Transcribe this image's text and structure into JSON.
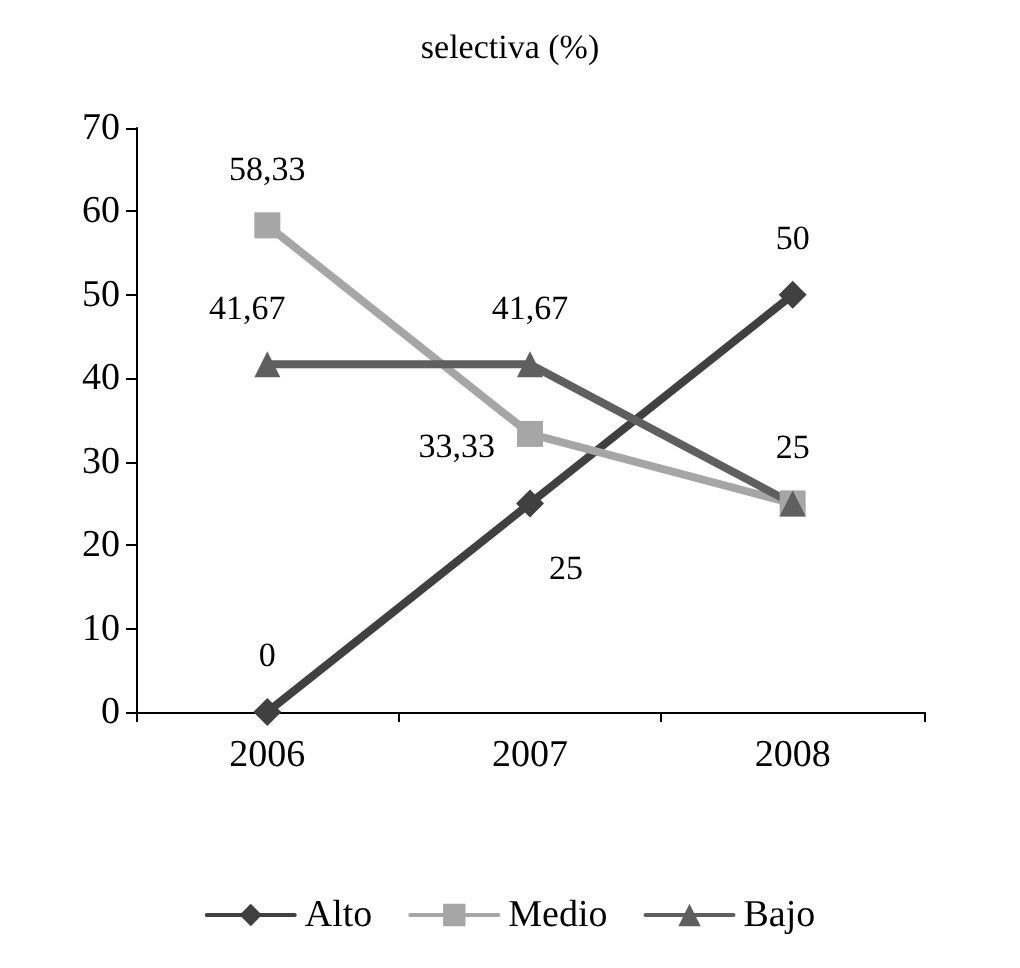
{
  "chart_data": {
    "type": "line",
    "title": "selectiva (%)",
    "categories": [
      "2006",
      "2007",
      "2008"
    ],
    "series": [
      {
        "name": "Alto",
        "color": "#404040",
        "marker": "diamond",
        "values": [
          0,
          25,
          50
        ],
        "value_labels": [
          "0",
          "25",
          "50"
        ]
      },
      {
        "name": "Medio",
        "color": "#a6a6a6",
        "marker": "square",
        "values": [
          58.33,
          33.33,
          25
        ],
        "value_labels": [
          "58,33",
          "33,33",
          null
        ]
      },
      {
        "name": "Bajo",
        "color": "#5f5f5f",
        "marker": "triangle",
        "values": [
          41.67,
          41.67,
          25
        ],
        "value_labels": [
          "41,67",
          "41,67",
          "25"
        ]
      }
    ],
    "ylim": [
      0,
      70
    ],
    "yticks": [
      0,
      10,
      20,
      30,
      40,
      50,
      60,
      70
    ],
    "grid": false,
    "legend": "bottom",
    "line_style": "solid"
  }
}
